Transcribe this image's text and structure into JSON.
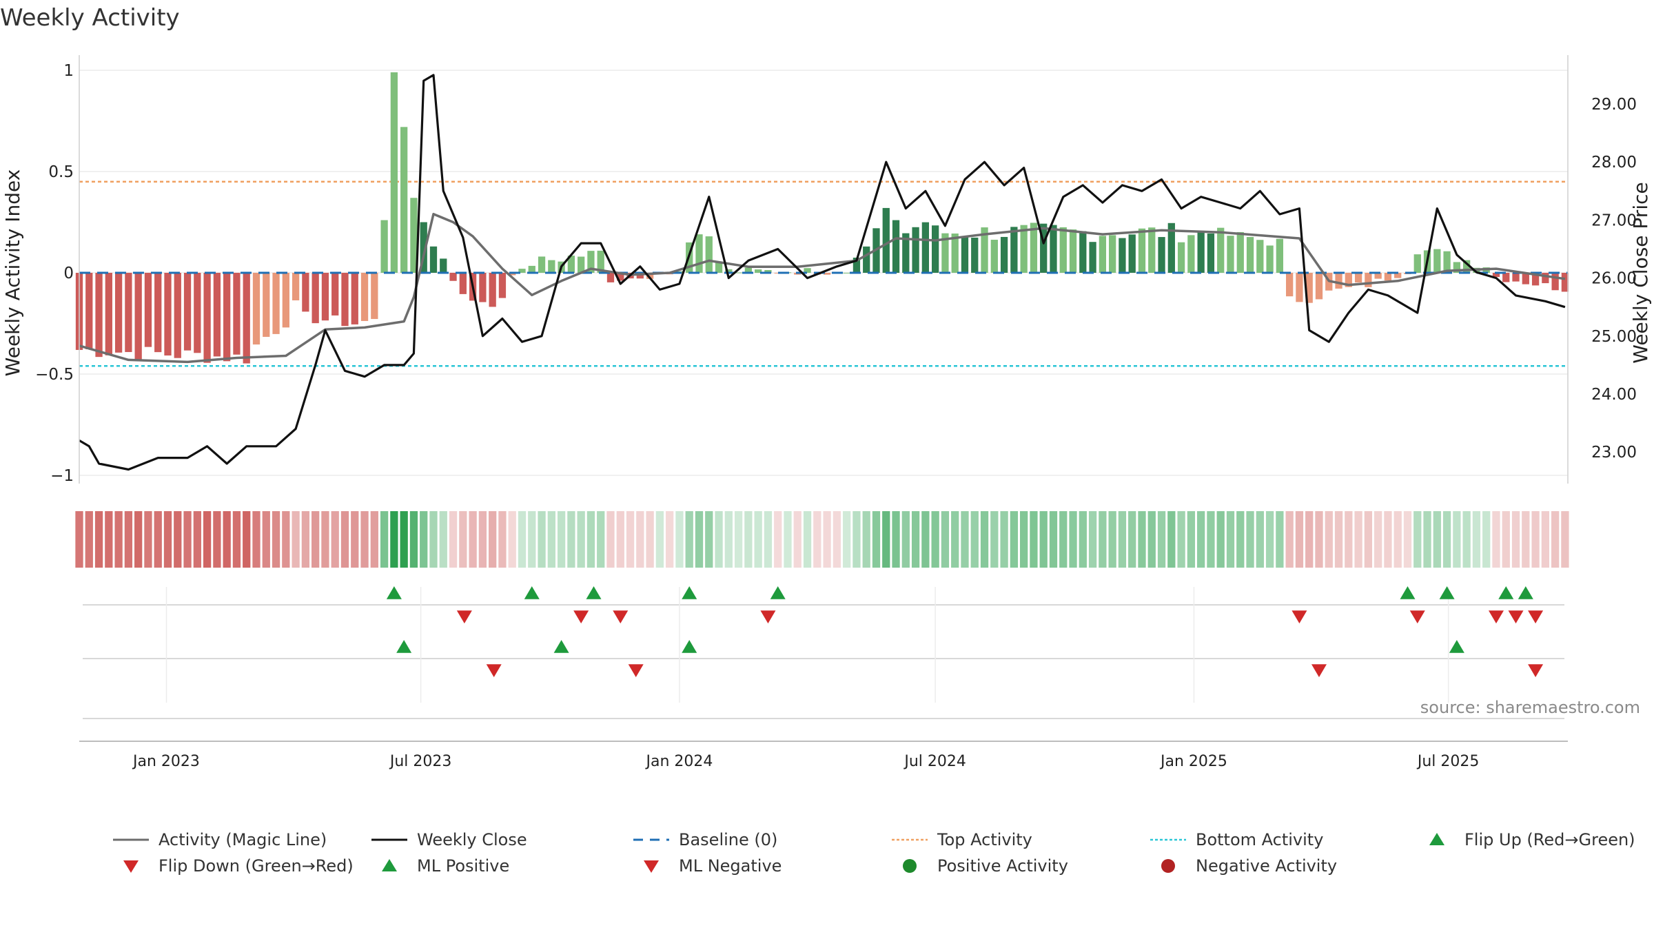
{
  "title": "Weekly Activity",
  "source": "source: sharemaestro.com",
  "colors": {
    "pos_strong": "#2e7d4f",
    "pos_light": "#7fbf7b",
    "neg_strong": "#cc5a58",
    "neg_light": "#e8987a",
    "magic": "#6d6d6d",
    "close": "#111111",
    "baseline": "#1f6fb4",
    "top": "#f0a060",
    "bottom": "#2ac6d6",
    "tri_up": "#1e9a3c",
    "tri_down": "#d02828",
    "pos_dot": "#1e8a2c",
    "neg_dot": "#b22222"
  },
  "legend": [
    {
      "label": "Activity (Magic Line)",
      "symbol": "line",
      "color": "#6d6d6d"
    },
    {
      "label": "Weekly Close",
      "symbol": "line",
      "color": "#111111"
    },
    {
      "label": "Baseline (0)",
      "symbol": "dash",
      "color": "#1f6fb4"
    },
    {
      "label": "Top Activity",
      "symbol": "dot-line",
      "color": "#f0a060"
    },
    {
      "label": "Bottom Activity",
      "symbol": "dot-line",
      "color": "#2ac6d6"
    },
    {
      "label": "Flip Up (Red→Green)",
      "symbol": "tri-up",
      "color": "#1e9a3c"
    },
    {
      "label": "Flip Down (Green→Red)",
      "symbol": "tri-down",
      "color": "#d02828"
    },
    {
      "label": "ML Positive",
      "symbol": "tri-up",
      "color": "#1e9a3c"
    },
    {
      "label": "ML Negative",
      "symbol": "tri-down",
      "color": "#d02828"
    },
    {
      "label": "Positive Activity",
      "symbol": "dot",
      "color": "#1e8a2c"
    },
    {
      "label": "Negative Activity",
      "symbol": "dot",
      "color": "#b22222"
    }
  ],
  "chart_data": {
    "type": "bar",
    "title": "Weekly Activity",
    "ylabel": "Weekly Activity Index",
    "y2label": "Weekly Close Price",
    "ylim": [
      -1.05,
      1.05
    ],
    "y2lim": [
      22.3,
      29.7
    ],
    "yticks": [
      1,
      0.5,
      0,
      -0.5,
      -1
    ],
    "yticklabels": [
      "1",
      "0.5",
      "0",
      "−0.5",
      "−1"
    ],
    "y2ticks": [
      29,
      28,
      27,
      26,
      25,
      24,
      23
    ],
    "y2ticklabels": [
      "29.00",
      "28.00",
      "27.00",
      "26.00",
      "25.00",
      "24.00",
      "23.00"
    ],
    "top_activity": 0.45,
    "bottom_activity": -0.46,
    "baseline": 0,
    "x_start": "2022-10-31",
    "x_end": "2025-09-24",
    "xticks": [
      {
        "date": "2023-01-01",
        "label": "Jan 2023"
      },
      {
        "date": "2023-07-01",
        "label": "Jul 2023"
      },
      {
        "date": "2024-01-01",
        "label": "Jan 2024"
      },
      {
        "date": "2024-07-01",
        "label": "Jul 2024"
      },
      {
        "date": "2025-01-01",
        "label": "Jan 2025"
      },
      {
        "date": "2025-07-01",
        "label": "Jul 2025"
      }
    ],
    "segments": [
      {
        "start": "2022-10-31",
        "n": 18,
        "v0": -0.38,
        "v1": -0.42,
        "noise": 0.04,
        "shade": "strong"
      },
      {
        "start": "2023-03-06",
        "n": 5,
        "v0": -0.36,
        "v1": -0.18,
        "noise": 0.05,
        "shade": "light"
      },
      {
        "start": "2023-04-10",
        "n": 6,
        "v0": -0.22,
        "v1": -0.25,
        "noise": 0.03,
        "shade": "strong"
      },
      {
        "start": "2023-05-22",
        "n": 5,
        "v0": -0.24,
        "v1": -0.22,
        "noise": 0.02,
        "shade": "light"
      },
      {
        "start": "2023-06-26",
        "n": 1,
        "v0": -0.2,
        "v1": -0.2,
        "noise": 0,
        "shade": "light"
      },
      {
        "start": "2023-07-03",
        "n": 1,
        "v0": -0.06,
        "v1": -0.06,
        "noise": 0,
        "shade": "strong"
      },
      {
        "start": "2023-07-10",
        "n": 8,
        "v0": -0.1,
        "v1": -0.15,
        "noise": 0.03,
        "shade": "strong"
      },
      {
        "start": "2023-09-18",
        "n": 8,
        "v0": 0.05,
        "v1": 0.1,
        "noise": 0.03,
        "shade": "light"
      },
      {
        "start": "2023-11-13",
        "n": 4,
        "v0": -0.04,
        "v1": -0.02,
        "noise": 0.01,
        "shade": "strong"
      },
      {
        "start": "2024-05-06",
        "n": 8,
        "v0": 0.12,
        "v1": 0.25,
        "noise": 0.05,
        "shade": "strong"
      },
      {
        "start": "2024-06-24",
        "n": 30,
        "v0": 0.2,
        "v1": 0.2,
        "noise": 0.05,
        "shade": "mixed"
      },
      {
        "start": "2025-01-13",
        "n": 8,
        "v0": 0.2,
        "v1": 0.15,
        "noise": 0.03,
        "shade": "light"
      },
      {
        "start": "2025-03-10",
        "n": 8,
        "v0": -0.14,
        "v1": -0.07,
        "noise": 0.03,
        "shade": "light"
      },
      {
        "start": "2025-05-05",
        "n": 5,
        "v0": -0.06,
        "v1": 0.01,
        "noise": 0.02,
        "shade": "light"
      },
      {
        "start": "2025-06-09",
        "n": 8,
        "v0": 0.12,
        "v1": 0.04,
        "noise": 0.03,
        "shade": "light"
      },
      {
        "start": "2025-08-04",
        "n": 8,
        "v0": -0.02,
        "v1": -0.08,
        "noise": 0.02,
        "shade": "strong"
      }
    ],
    "spikes": [
      {
        "date": "2023-06-05",
        "value": 0.26
      },
      {
        "date": "2023-06-12",
        "value": 0.99
      },
      {
        "date": "2023-06-19",
        "value": 0.72
      },
      {
        "date": "2023-06-26",
        "value": 0.37
      },
      {
        "date": "2023-07-03",
        "value": 0.25
      },
      {
        "date": "2023-07-10",
        "value": 0.13
      },
      {
        "date": "2023-07-17",
        "value": 0.07
      },
      {
        "date": "2023-07-24",
        "value": -0.04
      },
      {
        "date": "2023-09-11",
        "value": 0.02
      },
      {
        "date": "2023-12-11",
        "value": -0.03
      },
      {
        "date": "2024-01-08",
        "value": 0.15
      },
      {
        "date": "2024-01-15",
        "value": 0.19
      },
      {
        "date": "2024-01-22",
        "value": 0.18
      },
      {
        "date": "2024-01-29",
        "value": 0.05
      },
      {
        "date": "2024-05-20",
        "value": 0.22
      },
      {
        "date": "2024-05-27",
        "value": 0.32
      },
      {
        "date": "2024-06-03",
        "value": 0.26
      },
      {
        "date": "2025-01-06",
        "value": 0.2
      }
    ],
    "weekly_close_points": [
      [
        "2022-10-31",
        23.2
      ],
      [
        "2022-11-07",
        23.1
      ],
      [
        "2022-11-14",
        22.8
      ],
      [
        "2022-12-05",
        22.7
      ],
      [
        "2022-12-26",
        22.9
      ],
      [
        "2023-01-16",
        22.9
      ],
      [
        "2023-01-30",
        23.1
      ],
      [
        "2023-02-13",
        22.8
      ],
      [
        "2023-02-27",
        23.1
      ],
      [
        "2023-03-20",
        23.1
      ],
      [
        "2023-04-03",
        23.4
      ],
      [
        "2023-04-17",
        24.5
      ],
      [
        "2023-04-24",
        25.1
      ],
      [
        "2023-05-08",
        24.4
      ],
      [
        "2023-05-22",
        24.3
      ],
      [
        "2023-06-05",
        24.5
      ],
      [
        "2023-06-19",
        24.5
      ],
      [
        "2023-06-26",
        24.7
      ],
      [
        "2023-07-03",
        29.4
      ],
      [
        "2023-07-10",
        29.5
      ],
      [
        "2023-07-17",
        27.5
      ],
      [
        "2023-07-31",
        26.7
      ],
      [
        "2023-08-14",
        25.0
      ],
      [
        "2023-08-28",
        25.3
      ],
      [
        "2023-09-11",
        24.9
      ],
      [
        "2023-09-25",
        25.0
      ],
      [
        "2023-10-09",
        26.2
      ],
      [
        "2023-10-23",
        26.6
      ],
      [
        "2023-11-06",
        26.6
      ],
      [
        "2023-11-20",
        25.9
      ],
      [
        "2023-12-04",
        26.2
      ],
      [
        "2023-12-18",
        25.8
      ],
      [
        "2024-01-01",
        25.9
      ],
      [
        "2024-01-22",
        27.4
      ],
      [
        "2024-02-05",
        26.0
      ],
      [
        "2024-02-19",
        26.3
      ],
      [
        "2024-03-11",
        26.5
      ],
      [
        "2024-04-01",
        26.0
      ],
      [
        "2024-04-22",
        26.2
      ],
      [
        "2024-05-06",
        26.3
      ],
      [
        "2024-05-27",
        28.0
      ],
      [
        "2024-06-10",
        27.2
      ],
      [
        "2024-06-24",
        27.5
      ],
      [
        "2024-07-08",
        26.9
      ],
      [
        "2024-07-22",
        27.7
      ],
      [
        "2024-08-05",
        28.0
      ],
      [
        "2024-08-19",
        27.6
      ],
      [
        "2024-09-02",
        27.9
      ],
      [
        "2024-09-16",
        26.6
      ],
      [
        "2024-09-30",
        27.4
      ],
      [
        "2024-10-14",
        27.6
      ],
      [
        "2024-10-28",
        27.3
      ],
      [
        "2024-11-11",
        27.6
      ],
      [
        "2024-11-25",
        27.5
      ],
      [
        "2024-12-09",
        27.7
      ],
      [
        "2024-12-23",
        27.2
      ],
      [
        "2025-01-06",
        27.4
      ],
      [
        "2025-01-20",
        27.3
      ],
      [
        "2025-02-03",
        27.2
      ],
      [
        "2025-02-17",
        27.5
      ],
      [
        "2025-03-03",
        27.1
      ],
      [
        "2025-03-17",
        27.2
      ],
      [
        "2025-03-24",
        25.1
      ],
      [
        "2025-04-07",
        24.9
      ],
      [
        "2025-04-21",
        25.4
      ],
      [
        "2025-05-05",
        25.8
      ],
      [
        "2025-05-19",
        25.7
      ],
      [
        "2025-06-09",
        25.4
      ],
      [
        "2025-06-23",
        27.2
      ],
      [
        "2025-07-07",
        26.4
      ],
      [
        "2025-07-21",
        26.1
      ],
      [
        "2025-08-04",
        26.0
      ],
      [
        "2025-08-18",
        25.7
      ],
      [
        "2025-09-08",
        25.6
      ],
      [
        "2025-09-22",
        25.5
      ]
    ],
    "magic_line_points": [
      [
        "2022-10-31",
        -0.36
      ],
      [
        "2022-12-05",
        -0.43
      ],
      [
        "2023-01-16",
        -0.44
      ],
      [
        "2023-02-20",
        -0.42
      ],
      [
        "2023-03-27",
        -0.41
      ],
      [
        "2023-04-24",
        -0.28
      ],
      [
        "2023-05-22",
        -0.27
      ],
      [
        "2023-06-19",
        -0.24
      ],
      [
        "2023-06-26",
        -0.12
      ],
      [
        "2023-07-10",
        0.29
      ],
      [
        "2023-07-24",
        0.25
      ],
      [
        "2023-08-07",
        0.18
      ],
      [
        "2023-08-28",
        0.02
      ],
      [
        "2023-09-18",
        -0.11
      ],
      [
        "2023-10-09",
        -0.04
      ],
      [
        "2023-10-30",
        0.02
      ],
      [
        "2023-11-27",
        -0.01
      ],
      [
        "2023-12-25",
        0.0
      ],
      [
        "2024-01-22",
        0.06
      ],
      [
        "2024-02-19",
        0.03
      ],
      [
        "2024-03-25",
        0.03
      ],
      [
        "2024-05-06",
        0.06
      ],
      [
        "2024-06-03",
        0.17
      ],
      [
        "2024-07-01",
        0.16
      ],
      [
        "2024-08-05",
        0.19
      ],
      [
        "2024-09-16",
        0.22
      ],
      [
        "2024-10-28",
        0.19
      ],
      [
        "2024-12-09",
        0.21
      ],
      [
        "2025-01-20",
        0.2
      ],
      [
        "2025-03-17",
        0.17
      ],
      [
        "2025-04-07",
        -0.04
      ],
      [
        "2025-04-21",
        -0.06
      ],
      [
        "2025-05-26",
        -0.04
      ],
      [
        "2025-06-30",
        0.01
      ],
      [
        "2025-08-04",
        0.02
      ],
      [
        "2025-09-22",
        -0.03
      ]
    ],
    "heat_strip": "per-week color strip mirroring the activity bars (green = positive, red = negative)",
    "events": {
      "flip_up": [
        "2023-06-12",
        "2023-09-18",
        "2023-11-01",
        "2024-01-08",
        "2024-03-11",
        "2025-06-02",
        "2025-06-30",
        "2025-08-11",
        "2025-08-25"
      ],
      "flip_down": [
        "2023-08-01",
        "2023-10-23",
        "2023-11-20",
        "2024-03-04",
        "2025-03-17",
        "2025-06-09",
        "2025-08-04",
        "2025-08-18",
        "2025-09-01"
      ],
      "ml_positive": [
        "2023-06-19",
        "2023-10-09",
        "2024-01-08",
        "2025-07-07"
      ],
      "ml_negative": [
        "2023-08-22",
        "2023-12-01",
        "2025-03-31",
        "2025-09-01"
      ]
    }
  }
}
